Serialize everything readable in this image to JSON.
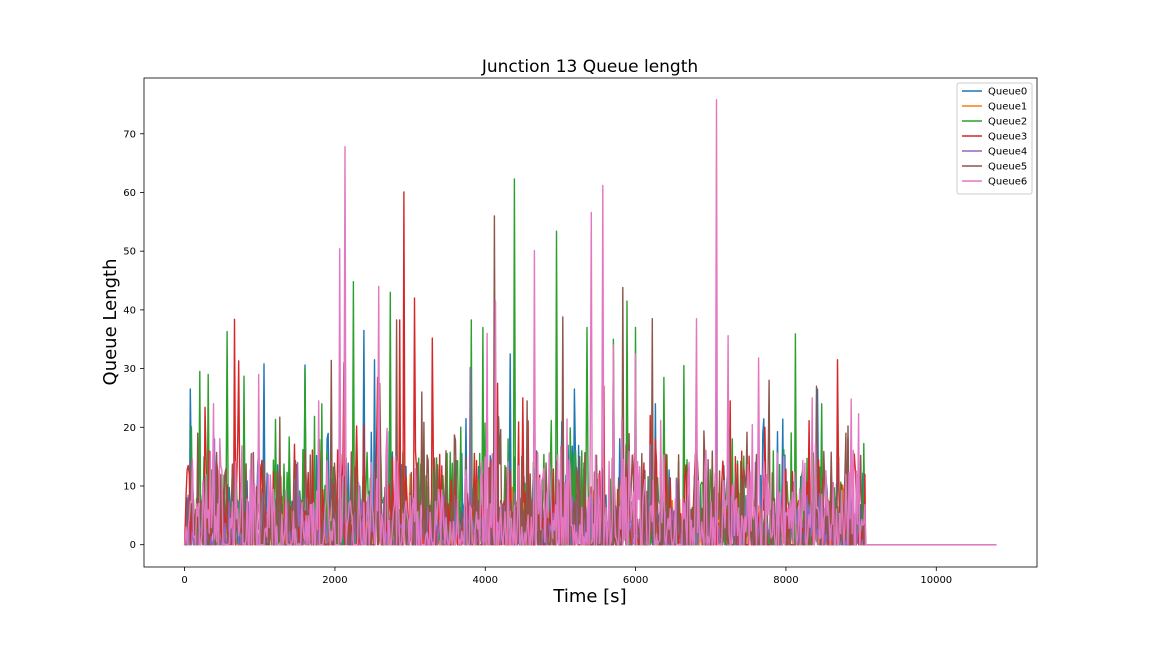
{
  "chart_data": {
    "type": "line",
    "title": "Junction 13 Queue length",
    "xlabel": "Time [s]",
    "ylabel": "Queue Length",
    "xlim": [
      -540,
      11340
    ],
    "ylim": [
      -3.8,
      79.5
    ],
    "xticks": [
      0,
      2000,
      4000,
      6000,
      8000,
      10000
    ],
    "yticks": [
      0,
      10,
      20,
      30,
      40,
      50,
      60,
      70
    ],
    "grid": false,
    "legend_position": "top-right",
    "active_until": 9050,
    "x_end": 10800,
    "series": [
      {
        "name": "Queue0",
        "color": "#1f77b4",
        "peaks": [
          [
            70,
            26.5
          ],
          [
            380,
            19
          ],
          [
            1060,
            30.8
          ],
          [
            1600,
            30.6
          ],
          [
            2380,
            36.5
          ],
          [
            2520,
            31.5
          ],
          [
            4330,
            32.5
          ],
          [
            5190,
            26.5
          ],
          [
            6260,
            24
          ],
          [
            7080,
            36.7
          ],
          [
            8420,
            26.5
          ],
          [
            9040,
            12
          ]
        ]
      },
      {
        "name": "Queue1",
        "color": "#ff7f0e",
        "peaks": [
          [
            500,
            12
          ],
          [
            1500,
            11
          ],
          [
            3000,
            12
          ],
          [
            4500,
            13
          ],
          [
            6000,
            12
          ],
          [
            7500,
            11
          ],
          [
            8800,
            10
          ]
        ]
      },
      {
        "name": "Queue2",
        "color": "#2ca02c",
        "peaks": [
          [
            200,
            29.5
          ],
          [
            320,
            29
          ],
          [
            560,
            36.3
          ],
          [
            790,
            28.7
          ],
          [
            1600,
            30
          ],
          [
            1830,
            24
          ],
          [
            2250,
            44.8
          ],
          [
            2730,
            43
          ],
          [
            3820,
            38.3
          ],
          [
            3970,
            37
          ],
          [
            4390,
            62.3
          ],
          [
            4950,
            53.4
          ],
          [
            5350,
            37
          ],
          [
            5710,
            35
          ],
          [
            5890,
            41.5
          ],
          [
            6000,
            37
          ],
          [
            6370,
            28.5
          ],
          [
            6640,
            30.5
          ],
          [
            7280,
            18
          ],
          [
            8120,
            35.9
          ],
          [
            8480,
            24
          ]
        ]
      },
      {
        "name": "Queue3",
        "color": "#d62728",
        "peaks": [
          [
            110,
            13.3
          ],
          [
            270,
            23.4
          ],
          [
            660,
            38.4
          ],
          [
            720,
            31.3
          ],
          [
            2120,
            31
          ],
          [
            2570,
            28.5
          ],
          [
            2860,
            38.3
          ],
          [
            2920,
            60.1
          ],
          [
            3060,
            42
          ],
          [
            3300,
            35.2
          ],
          [
            4160,
            27.5
          ],
          [
            4500,
            25
          ],
          [
            5580,
            27
          ],
          [
            6200,
            22
          ],
          [
            7260,
            24.5
          ],
          [
            7720,
            20
          ],
          [
            8680,
            31.5
          ],
          [
            8900,
            12
          ]
        ]
      },
      {
        "name": "Queue4",
        "color": "#9467bd",
        "peaks": [
          [
            400,
            18
          ],
          [
            1500,
            14
          ],
          [
            3800,
            30.2
          ],
          [
            5000,
            15
          ],
          [
            6200,
            17
          ],
          [
            7600,
            14
          ]
        ]
      },
      {
        "name": "Queue5",
        "color": "#8c564b",
        "peaks": [
          [
            180,
            19
          ],
          [
            1950,
            31.4
          ],
          [
            2590,
            27.5
          ],
          [
            2820,
            38.3
          ],
          [
            3150,
            26
          ],
          [
            4120,
            56
          ],
          [
            4560,
            24.5
          ],
          [
            5030,
            38.8
          ],
          [
            5830,
            43.8
          ],
          [
            6220,
            38.5
          ],
          [
            7780,
            28
          ],
          [
            8410,
            27
          ],
          [
            8800,
            19
          ]
        ]
      },
      {
        "name": "Queue6",
        "color": "#e377c2",
        "peaks": [
          [
            390,
            24
          ],
          [
            980,
            29
          ],
          [
            1780,
            24.5
          ],
          [
            2060,
            50.4
          ],
          [
            2130,
            67.8
          ],
          [
            2580,
            44
          ],
          [
            4020,
            36
          ],
          [
            4130,
            41.5
          ],
          [
            4650,
            50.1
          ],
          [
            5410,
            56.6
          ],
          [
            5570,
            61.2
          ],
          [
            5700,
            34
          ],
          [
            6000,
            32.5
          ],
          [
            6810,
            38.5
          ],
          [
            7080,
            75.8
          ],
          [
            7230,
            35.6
          ],
          [
            7630,
            31.8
          ],
          [
            8350,
            25
          ],
          [
            8870,
            24.8
          ],
          [
            8960,
            22.3
          ]
        ]
      }
    ]
  }
}
